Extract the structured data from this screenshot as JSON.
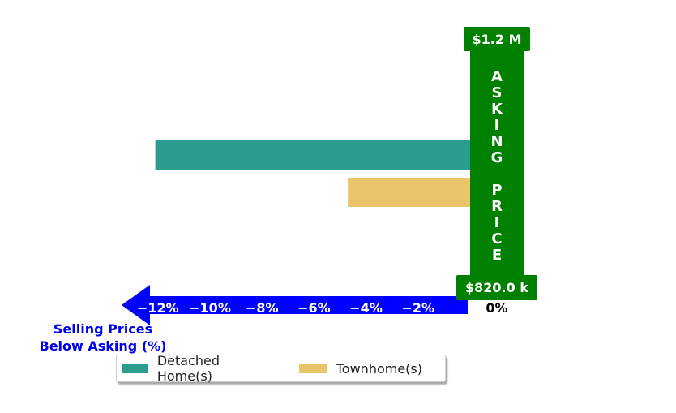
{
  "chart_data": {
    "type": "bar",
    "orientation": "horizontal",
    "series": [
      {
        "name": "Detached Home(s)",
        "value": -12.1,
        "color": "#2a9d8f"
      },
      {
        "name": "Townhome(s)",
        "value": -4.7,
        "color": "#e9c46a"
      }
    ],
    "xlim": [
      -13.4,
      1.0
    ],
    "xticks": [
      -12,
      -10,
      -8,
      -6,
      -4,
      -2,
      0
    ],
    "tick_labels": [
      "−12%",
      "−10%",
      "−8%",
      "−6%",
      "−4%",
      "−2%",
      "0%"
    ],
    "xlabel_lines": [
      "Selling Prices",
      "Below Asking (%)"
    ],
    "asking_price_lines": [
      "A",
      "S",
      "K",
      "I",
      "N",
      "G",
      "",
      "P",
      "R",
      "I",
      "C",
      "E"
    ],
    "top_price_label": "$1.2 M",
    "bottom_price_label": "$820.0 k",
    "arrow_color": "#0000ff",
    "asking_color": "#008000",
    "grid": false,
    "legend_position": "bottom-center"
  }
}
